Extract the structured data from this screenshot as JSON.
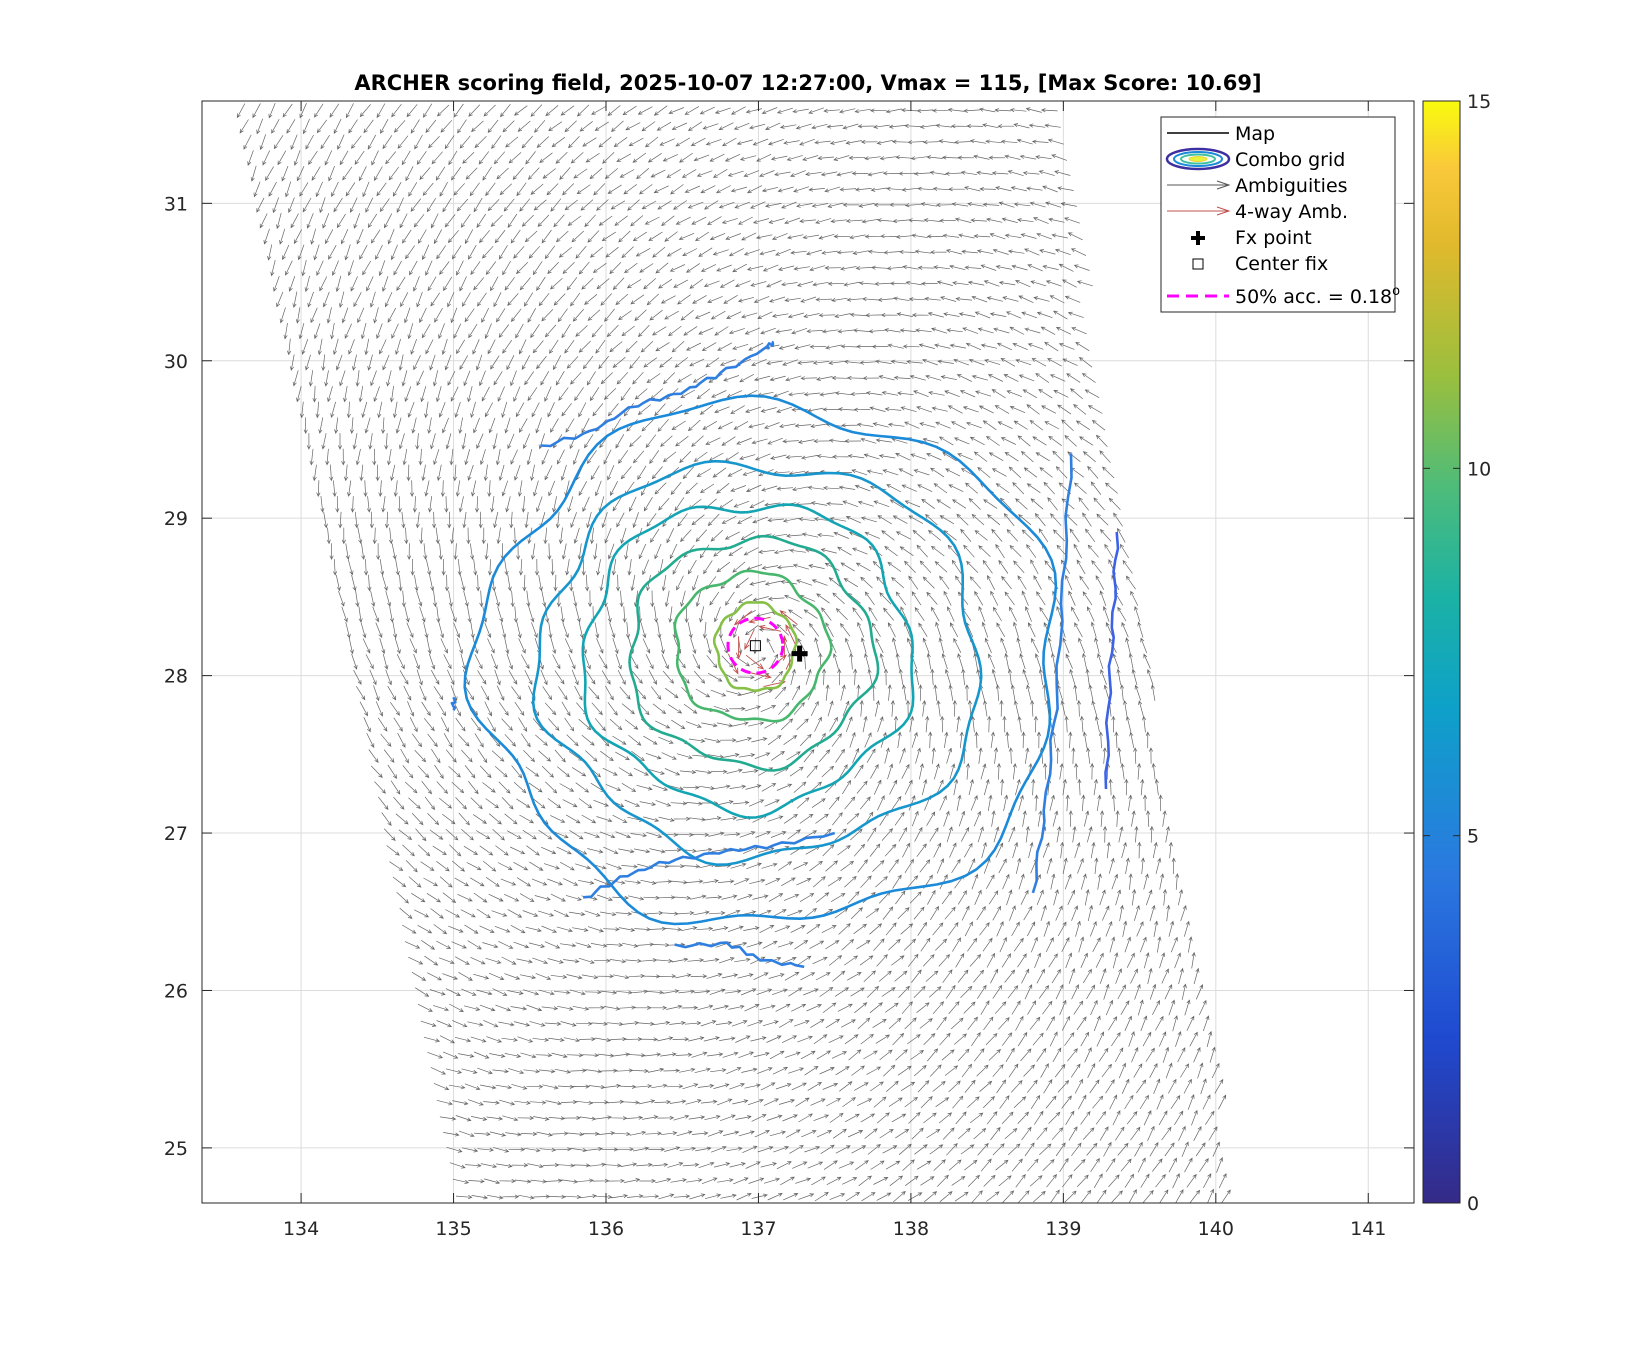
{
  "chart_data": {
    "type": "vector_field_contour",
    "title": "ARCHER scoring field, 2025-10-07 12:27:00, Vmax = 115, [Max Score: 10.69]",
    "xlim": [
      133.35,
      141.3
    ],
    "ylim": [
      24.65,
      31.65
    ],
    "xticks": [
      "134",
      "135",
      "136",
      "137",
      "138",
      "139",
      "140",
      "141"
    ],
    "yticks": [
      "25",
      "26",
      "27",
      "28",
      "29",
      "30",
      "31"
    ],
    "grid": true,
    "legend": {
      "location": "top-right",
      "entries": [
        {
          "key": "map",
          "label": "Map"
        },
        {
          "key": "combo",
          "label": "Combo grid"
        },
        {
          "key": "amb",
          "label": "Ambiguities"
        },
        {
          "key": "amb4",
          "label": "4-way Amb."
        },
        {
          "key": "fx",
          "label": "Fx point"
        },
        {
          "key": "center",
          "label": "Center fix"
        },
        {
          "key": "acc",
          "label": "50% acc. = 0.18",
          "superscript": "o"
        }
      ]
    },
    "colorbar": {
      "min": 0,
      "max": 15,
      "ticks": [
        "0",
        "5",
        "10",
        "15"
      ],
      "colormap": "parula"
    },
    "fx_point": {
      "lon": 137.27,
      "lat": 28.14
    },
    "center_fix": {
      "lon": 136.98,
      "lat": 28.19
    },
    "acc_radius_deg": 0.18,
    "swath": {
      "left_edge": [
        [
          133.55,
          31.62
        ],
        [
          135.02,
          24.68
        ]
      ],
      "right_edge": [
        [
          138.95,
          31.62
        ],
        [
          140.15,
          24.68
        ]
      ]
    },
    "vortex": {
      "lon": 137.0,
      "lat": 28.18
    },
    "contours": [
      {
        "level": 10,
        "color": "#86c047",
        "center": [
          136.98,
          28.18
        ],
        "rx": 0.26,
        "ry": 0.28
      },
      {
        "level": 9,
        "color": "#46b76c",
        "center": [
          136.95,
          28.18
        ],
        "rx": 0.5,
        "ry": 0.47
      },
      {
        "level": 8,
        "color": "#22ab90",
        "center": [
          136.95,
          28.15
        ],
        "rx": 0.8,
        "ry": 0.72
      },
      {
        "level": 7,
        "color": "#13a5b4",
        "center": [
          136.93,
          28.13
        ],
        "rx": 1.08,
        "ry": 0.97
      },
      {
        "level": 6,
        "color": "#1796cd",
        "center": [
          136.92,
          28.05
        ],
        "rx": 1.45,
        "ry": 1.25
      },
      {
        "level": 5.5,
        "color": "#1a8ad9",
        "center": [
          136.95,
          28.0
        ],
        "rx": 1.9,
        "ry": 1.65
      }
    ],
    "contour_fragments": [
      {
        "level": 5,
        "color": "#2f7fe0",
        "points": [
          [
            135.57,
            29.45
          ],
          [
            135.9,
            29.55
          ],
          [
            136.2,
            29.72
          ],
          [
            136.5,
            29.8
          ],
          [
            136.75,
            29.92
          ],
          [
            137.05,
            30.08
          ],
          [
            137.1,
            30.12
          ]
        ]
      },
      {
        "level": 5,
        "color": "#2f7fe0",
        "points": [
          [
            135.85,
            26.58
          ],
          [
            136.1,
            26.72
          ],
          [
            136.4,
            26.82
          ],
          [
            136.75,
            26.88
          ],
          [
            137.1,
            26.92
          ],
          [
            137.5,
            27.0
          ]
        ]
      },
      {
        "level": 5,
        "color": "#2f7fe0",
        "points": [
          [
            136.45,
            26.28
          ],
          [
            136.8,
            26.3
          ],
          [
            137.0,
            26.2
          ],
          [
            137.3,
            26.15
          ]
        ]
      },
      {
        "level": 5,
        "color": "#2f7fe0",
        "points": [
          [
            135.0,
            27.85
          ],
          [
            135.0,
            27.78
          ]
        ]
      },
      {
        "level": 5,
        "color": "#2f7fe0",
        "points": [
          [
            139.05,
            29.4
          ],
          [
            139.0,
            28.6
          ],
          [
            138.95,
            27.8
          ],
          [
            138.88,
            27.15
          ],
          [
            138.8,
            26.62
          ]
        ]
      },
      {
        "level": 4,
        "color": "#3c63e6",
        "points": [
          [
            139.35,
            28.9
          ],
          [
            139.33,
            28.4
          ],
          [
            139.3,
            27.9
          ],
          [
            139.28,
            27.28
          ]
        ]
      }
    ]
  }
}
